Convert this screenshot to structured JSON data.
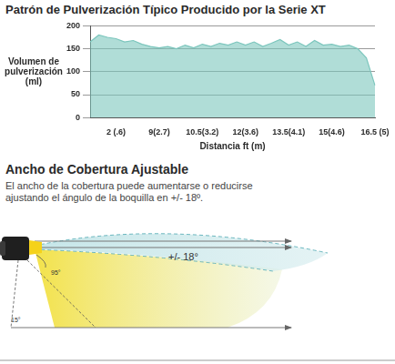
{
  "chart_data": {
    "type": "area",
    "title": "Patrón de Pulverización Típico Producido por la Serie XT",
    "ylabel": [
      "Volumen de",
      "pulverización",
      "(ml)"
    ],
    "xlabel": "Distancia ft (m)",
    "categories": [
      null,
      null,
      null,
      "2 (.6)",
      null,
      null,
      null,
      null,
      "9(2.7)",
      null,
      null,
      null,
      null,
      "10.5(3.2)",
      null,
      null,
      null,
      null,
      "12(3.6)",
      null,
      null,
      null,
      null,
      "13.5(4.1)",
      null,
      null,
      null,
      null,
      "15(4.6)",
      null,
      null,
      null,
      null,
      "16.5 (5)"
    ],
    "values": [
      165,
      180,
      175,
      172,
      165,
      168,
      160,
      155,
      152,
      155,
      150,
      158,
      152,
      160,
      155,
      162,
      158,
      165,
      158,
      165,
      155,
      162,
      170,
      158,
      165,
      155,
      168,
      158,
      160,
      155,
      158,
      150,
      130,
      70
    ],
    "color": "#7cc6bd",
    "ylim": [
      0,
      200
    ],
    "yticks": [
      0,
      50,
      100,
      150,
      200
    ],
    "grid": true
  },
  "section": {
    "title": "Ancho de Cobertura Ajustable",
    "text": "El ancho de la cobertura puede aumentarse o reducirse ajustando el ángulo de la boquilla en +/- 18º.",
    "diagram": {
      "labels": [
        "+/- 18°",
        "95°",
        "15°"
      ]
    }
  }
}
